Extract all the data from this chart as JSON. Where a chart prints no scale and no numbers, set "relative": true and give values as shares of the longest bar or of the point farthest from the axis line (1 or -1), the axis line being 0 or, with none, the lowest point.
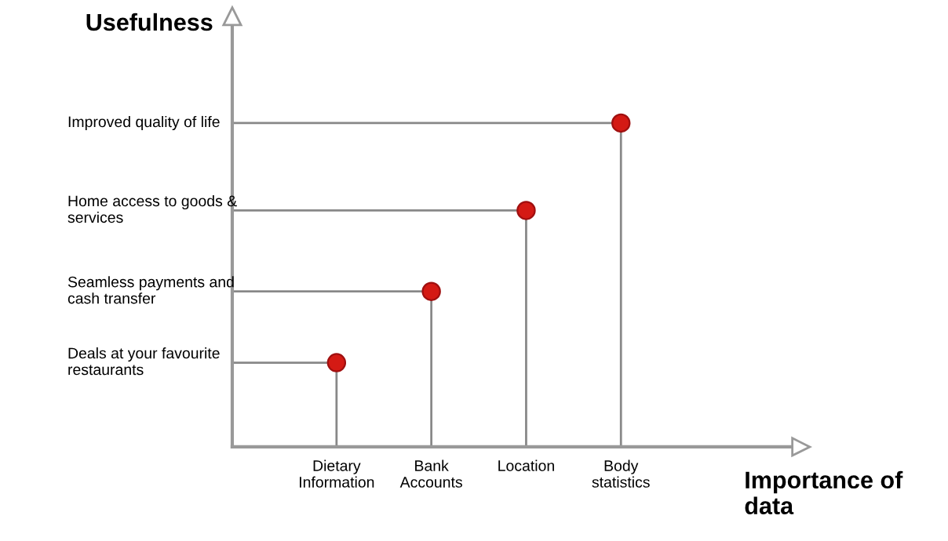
{
  "chart_data": {
    "type": "lollipop",
    "xlabel": "Importance of\ndata",
    "ylabel": "Usefulness",
    "relative": true,
    "categories": [
      "Dietary\nInformation",
      "Bank\nAccounts",
      "Location",
      "Body\nstatistics"
    ],
    "values": [
      0.26,
      0.48,
      0.73,
      1
    ],
    "color": "#d41a14",
    "marker": "circle",
    "legend": false,
    "annotations": [
      "Deals at your favourite\nrestaurants",
      "Seamless payments and\ncash transfer",
      "Home access to goods &\nservices",
      "Improved quality of life"
    ]
  }
}
